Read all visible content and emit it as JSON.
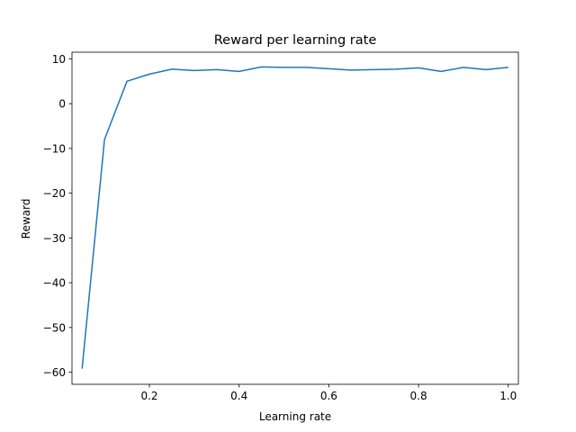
{
  "chart_data": {
    "type": "line",
    "title": "Reward per learning rate",
    "xlabel": "Learning rate",
    "ylabel": "Reward",
    "xlim": [
      0.0275,
      1.0225
    ],
    "ylim": [
      -62.7,
      11.5
    ],
    "grid": false,
    "legend": "none",
    "x_ticks": [
      0.2,
      0.4,
      0.6,
      0.8,
      1.0
    ],
    "x_tick_labels": [
      "0.2",
      "0.4",
      "0.6",
      "0.8",
      "1.0"
    ],
    "y_ticks": [
      10,
      0,
      -10,
      -20,
      -30,
      -40,
      -50,
      -60
    ],
    "y_tick_labels": [
      "10",
      "0",
      "−10",
      "−20",
      "−30",
      "−40",
      "−50",
      "−60"
    ],
    "series": [
      {
        "color": "#1f77b4",
        "x": [
          0.05,
          0.1,
          0.15,
          0.2,
          0.25,
          0.3,
          0.35,
          0.4,
          0.45,
          0.5,
          0.55,
          0.6,
          0.65,
          0.7,
          0.75,
          0.8,
          0.85,
          0.9,
          0.95,
          1.0
        ],
        "y": [
          -59.2,
          -8.0,
          5.0,
          6.6,
          7.7,
          7.4,
          7.6,
          7.2,
          8.2,
          8.1,
          8.1,
          7.8,
          7.5,
          7.6,
          7.7,
          8.0,
          7.2,
          8.1,
          7.6,
          8.1
        ]
      }
    ]
  }
}
